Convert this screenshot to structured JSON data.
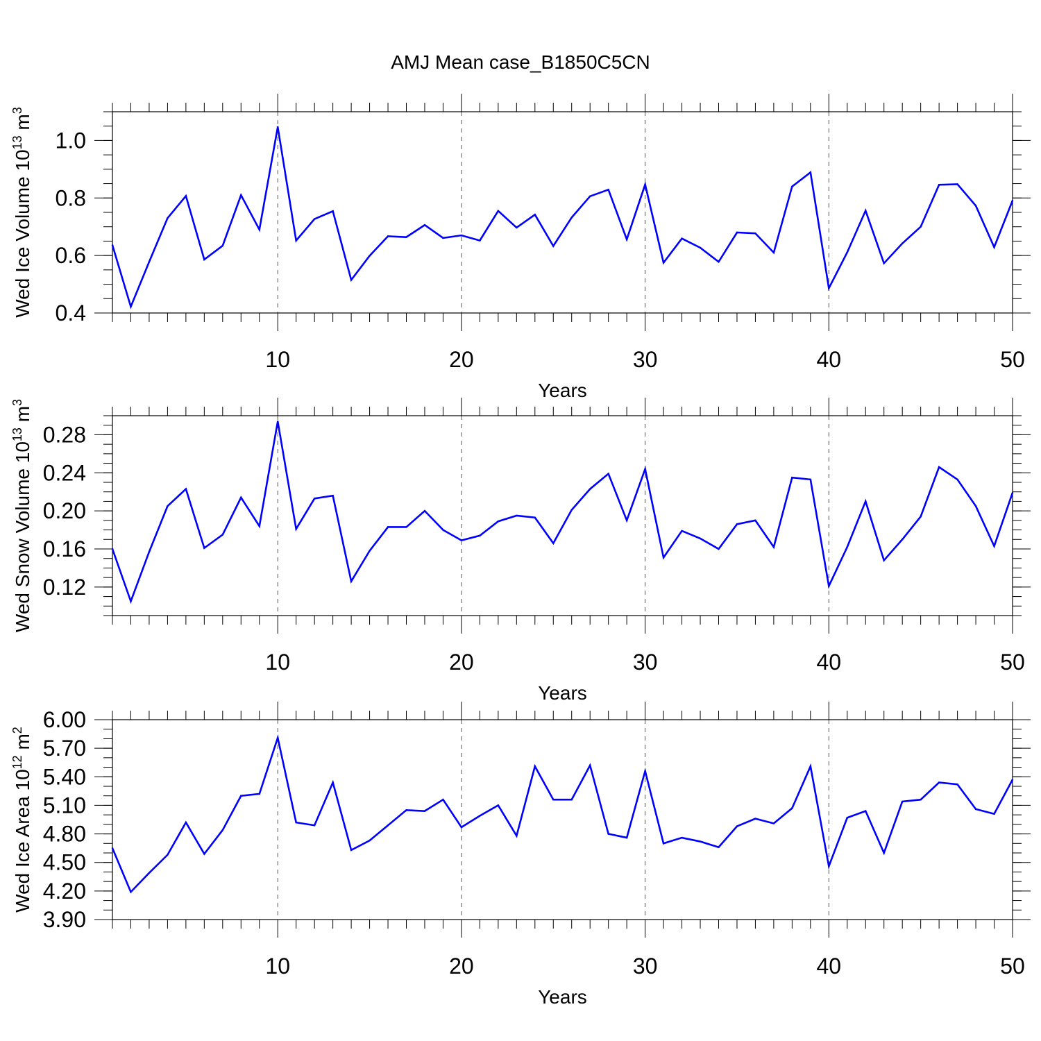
{
  "title": "AMJ Mean case_B1850C5CN",
  "line_color": "#0000ff",
  "chart_data": [
    {
      "type": "line",
      "name": "ice-volume",
      "ylabel_main": "Wed Ice Volume 10",
      "ylabel_exp": "13",
      "ylabel_unit": " m",
      "ylabel_unit_exp": "3",
      "xlabel": "Years",
      "xlim": [
        1,
        50
      ],
      "ylim": [
        0.4,
        1.1
      ],
      "yticks": [
        0.4,
        0.6,
        0.8,
        1.0
      ],
      "ytick_labels": [
        "0.4",
        "0.6",
        "0.8",
        "1.0"
      ],
      "yminor_step": 0.05,
      "xticks": [
        10,
        20,
        30,
        40,
        50
      ],
      "xtick_labels": [
        "10",
        "20",
        "30",
        "40",
        "50"
      ],
      "gridlines_x": [
        10,
        20,
        30,
        40
      ],
      "series": [
        {
          "name": "Wed Ice Volume",
          "x": [
            1,
            2,
            3,
            4,
            5,
            6,
            7,
            8,
            9,
            10,
            11,
            12,
            13,
            14,
            15,
            16,
            17,
            18,
            19,
            20,
            21,
            22,
            23,
            24,
            25,
            26,
            27,
            28,
            29,
            30,
            31,
            32,
            33,
            34,
            35,
            36,
            37,
            38,
            39,
            40,
            41,
            42,
            43,
            44,
            45,
            46,
            47,
            48,
            49,
            50
          ],
          "values": [
            0.636,
            0.422,
            0.578,
            0.73,
            0.807,
            0.586,
            0.634,
            0.81,
            0.69,
            1.047,
            0.652,
            0.727,
            0.754,
            0.515,
            0.599,
            0.667,
            0.664,
            0.706,
            0.661,
            0.67,
            0.652,
            0.755,
            0.697,
            0.742,
            0.633,
            0.732,
            0.806,
            0.829,
            0.656,
            0.847,
            0.575,
            0.659,
            0.627,
            0.578,
            0.68,
            0.677,
            0.61,
            0.84,
            0.889,
            0.486,
            0.611,
            0.756,
            0.573,
            0.642,
            0.7,
            0.846,
            0.848,
            0.773,
            0.629,
            0.791
          ]
        }
      ]
    },
    {
      "type": "line",
      "name": "snow-volume",
      "ylabel_main": "Wed Snow Volume 10",
      "ylabel_exp": "13",
      "ylabel_unit": " m",
      "ylabel_unit_exp": "3",
      "xlabel": "Years",
      "xlim": [
        1,
        50
      ],
      "ylim": [
        0.09,
        0.3
      ],
      "yticks": [
        0.12,
        0.16,
        0.2,
        0.24,
        0.28
      ],
      "ytick_labels": [
        "0.12",
        "0.16",
        "0.20",
        "0.24",
        "0.28"
      ],
      "yminor_step": 0.01,
      "xticks": [
        10,
        20,
        30,
        40,
        50
      ],
      "xtick_labels": [
        "10",
        "20",
        "30",
        "40",
        "50"
      ],
      "gridlines_x": [
        10,
        20,
        30,
        40
      ],
      "series": [
        {
          "name": "Wed Snow Volume",
          "x": [
            1,
            2,
            3,
            4,
            5,
            6,
            7,
            8,
            9,
            10,
            11,
            12,
            13,
            14,
            15,
            16,
            17,
            18,
            19,
            20,
            21,
            22,
            23,
            24,
            25,
            26,
            27,
            28,
            29,
            30,
            31,
            32,
            33,
            34,
            35,
            36,
            37,
            38,
            39,
            40,
            41,
            42,
            43,
            44,
            45,
            46,
            47,
            48,
            49,
            50
          ],
          "values": [
            0.16,
            0.105,
            0.157,
            0.205,
            0.223,
            0.161,
            0.175,
            0.214,
            0.184,
            0.294,
            0.181,
            0.213,
            0.216,
            0.126,
            0.158,
            0.183,
            0.183,
            0.2,
            0.18,
            0.169,
            0.174,
            0.189,
            0.195,
            0.193,
            0.166,
            0.201,
            0.223,
            0.239,
            0.19,
            0.244,
            0.151,
            0.179,
            0.171,
            0.16,
            0.186,
            0.19,
            0.162,
            0.235,
            0.233,
            0.121,
            0.162,
            0.21,
            0.148,
            0.17,
            0.194,
            0.246,
            0.233,
            0.205,
            0.163,
            0.219
          ]
        }
      ]
    },
    {
      "type": "line",
      "name": "ice-area",
      "ylabel_main": "Wed Ice Area 10",
      "ylabel_exp": "12",
      "ylabel_unit": " m",
      "ylabel_unit_exp": "2",
      "xlabel": "Years",
      "xlim": [
        1,
        50
      ],
      "ylim": [
        3.9,
        6.0
      ],
      "yticks": [
        3.9,
        4.2,
        4.5,
        4.8,
        5.1,
        5.4,
        5.7,
        6.0
      ],
      "ytick_labels": [
        "3.90",
        "4.20",
        "4.50",
        "4.80",
        "5.10",
        "5.40",
        "5.70",
        "6.00"
      ],
      "yminor_step": 0.1,
      "xticks": [
        10,
        20,
        30,
        40,
        50
      ],
      "xtick_labels": [
        "10",
        "20",
        "30",
        "40",
        "50"
      ],
      "gridlines_x": [
        10,
        20,
        30,
        40
      ],
      "series": [
        {
          "name": "Wed Ice Area",
          "x": [
            1,
            2,
            3,
            4,
            5,
            6,
            7,
            8,
            9,
            10,
            11,
            12,
            13,
            14,
            15,
            16,
            17,
            18,
            19,
            20,
            21,
            22,
            23,
            24,
            25,
            26,
            27,
            28,
            29,
            30,
            31,
            32,
            33,
            34,
            35,
            36,
            37,
            38,
            39,
            40,
            41,
            42,
            43,
            44,
            45,
            46,
            47,
            48,
            49,
            50
          ],
          "values": [
            4.65,
            4.19,
            4.39,
            4.58,
            4.92,
            4.59,
            4.84,
            5.2,
            5.22,
            5.81,
            4.92,
            4.89,
            5.34,
            4.63,
            4.73,
            4.89,
            5.05,
            5.04,
            5.16,
            4.87,
            4.99,
            5.1,
            4.78,
            5.51,
            5.16,
            5.16,
            5.52,
            4.8,
            4.76,
            5.46,
            4.7,
            4.76,
            4.72,
            4.66,
            4.88,
            4.96,
            4.91,
            5.07,
            5.51,
            4.46,
            4.97,
            5.04,
            4.6,
            5.14,
            5.16,
            5.34,
            5.32,
            5.06,
            5.01,
            5.37
          ]
        }
      ]
    }
  ]
}
